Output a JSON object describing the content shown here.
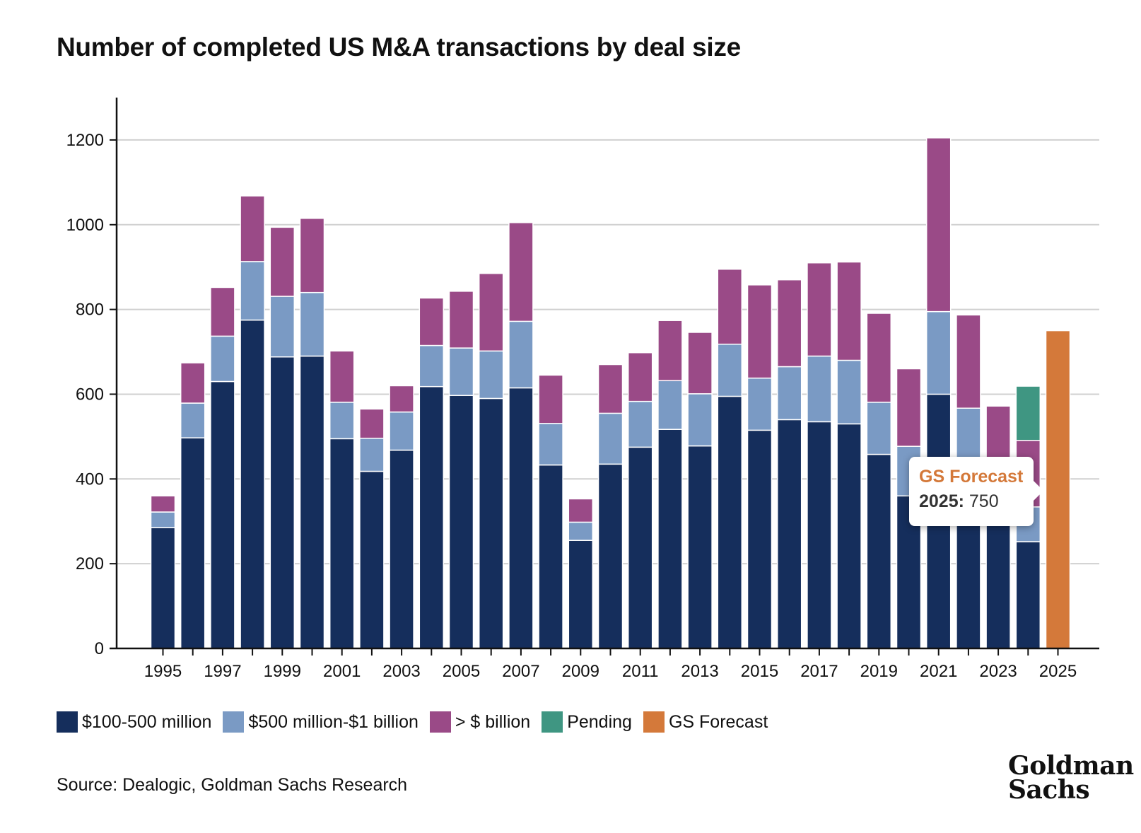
{
  "title": "Number of completed US M&A transactions by deal size",
  "source": "Source: Dealogic, Goldman Sachs Research",
  "logo": {
    "line1": "Goldman",
    "line2": "Sachs"
  },
  "tooltip": {
    "title": "GS Forecast",
    "year_label": "2025:",
    "value": "750"
  },
  "colors": {
    "small": "#152e5c",
    "mid": "#7a9ac4",
    "large": "#9a4a87",
    "pending": "#3f9682",
    "forecast": "#d4793a"
  },
  "chart_data": {
    "type": "bar",
    "stacked": true,
    "title": "Number of completed US M&A transactions by deal size",
    "xlabel": "",
    "ylabel": "",
    "ylim": [
      0,
      1300
    ],
    "yticks": [
      0,
      200,
      400,
      600,
      800,
      1000,
      1200
    ],
    "grid": true,
    "legend_position": "bottom",
    "categories": [
      "1995",
      "1996",
      "1997",
      "1998",
      "1999",
      "2000",
      "2001",
      "2002",
      "2003",
      "2004",
      "2005",
      "2006",
      "2007",
      "2008",
      "2009",
      "2010",
      "2011",
      "2012",
      "2013",
      "2014",
      "2015",
      "2016",
      "2017",
      "2018",
      "2019",
      "2020",
      "2021",
      "2022",
      "2023",
      "2024",
      "2025"
    ],
    "xtick_labels": [
      "1995",
      "1997",
      "1999",
      "2001",
      "2003",
      "2005",
      "2007",
      "2009",
      "2011",
      "2013",
      "2015",
      "2017",
      "2019",
      "2021",
      "2023",
      "2025"
    ],
    "series": [
      {
        "name": "$100-500 million",
        "color_key": "small",
        "values": [
          285,
          497,
          630,
          775,
          688,
          690,
          495,
          418,
          468,
          618,
          597,
          590,
          615,
          433,
          255,
          435,
          475,
          517,
          478,
          595,
          515,
          540,
          535,
          530,
          458,
          360,
          600,
          345,
          310,
          252,
          0
        ]
      },
      {
        "name": "$500 million-$1 billion",
        "color_key": "mid",
        "values": [
          37,
          82,
          107,
          138,
          143,
          150,
          86,
          78,
          90,
          97,
          112,
          112,
          157,
          98,
          43,
          120,
          108,
          115,
          123,
          123,
          123,
          125,
          155,
          150,
          123,
          117,
          195,
          222,
          140,
          82,
          0
        ]
      },
      {
        "name": "> $ billion",
        "color_key": "large",
        "values": [
          38,
          95,
          115,
          155,
          163,
          175,
          121,
          69,
          62,
          112,
          134,
          183,
          233,
          114,
          55,
          115,
          115,
          142,
          145,
          177,
          220,
          205,
          220,
          232,
          210,
          183,
          410,
          220,
          122,
          157,
          0
        ]
      },
      {
        "name": "Pending",
        "color_key": "pending",
        "values": [
          0,
          0,
          0,
          0,
          0,
          0,
          0,
          0,
          0,
          0,
          0,
          0,
          0,
          0,
          0,
          0,
          0,
          0,
          0,
          0,
          0,
          0,
          0,
          0,
          0,
          0,
          0,
          0,
          0,
          128,
          0
        ]
      },
      {
        "name": "GS Forecast",
        "color_key": "forecast",
        "values": [
          0,
          0,
          0,
          0,
          0,
          0,
          0,
          0,
          0,
          0,
          0,
          0,
          0,
          0,
          0,
          0,
          0,
          0,
          0,
          0,
          0,
          0,
          0,
          0,
          0,
          0,
          0,
          0,
          0,
          0,
          750
        ]
      }
    ]
  }
}
